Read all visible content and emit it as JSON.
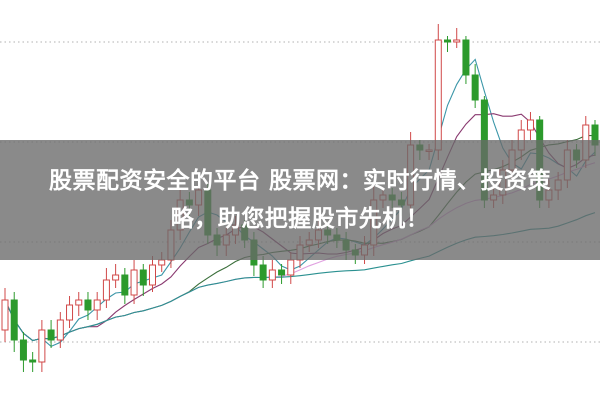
{
  "banner": {
    "line1": "股票配资安全的平台 股票网：实时行情、投资策",
    "line2": "略，助您把握股市先机！"
  },
  "chart_data": {
    "type": "candlestick",
    "title": "",
    "xlabel": "",
    "ylabel": "",
    "grid": "horizontal dotted",
    "ylim": [
      0,
      100
    ],
    "colors": {
      "up": "#d04848",
      "down": "#2c9a2c",
      "grid": "#b0b0b0",
      "ma5": "#3a96a8",
      "ma10": "#8a3a70",
      "ma20": "#3a6e3a",
      "ma30": "#e0a0e0",
      "ma60": "#2a9090"
    },
    "moving_averages": [
      5,
      10,
      20,
      30,
      60
    ],
    "open": [
      17.5,
      25,
      15,
      10,
      9.5,
      17.5,
      15,
      20,
      23.75,
      25,
      22.5,
      25,
      30,
      31.25,
      26.25,
      32.5,
      28.75,
      33.75,
      35,
      42.5,
      50,
      48.75,
      52.5,
      41.25,
      38.75,
      41.25,
      43.75,
      40,
      33.75,
      30,
      32.5,
      31.25,
      35,
      38.75,
      40,
      42.5,
      41.25,
      40,
      37.5,
      36.25,
      38.75,
      50,
      51.25,
      50,
      48.75,
      63.75,
      62.5,
      62.5,
      90,
      89.5,
      90,
      81.25,
      75,
      50,
      51.25,
      57.5,
      62.5,
      67.5,
      70,
      50,
      52.5,
      55,
      62.5,
      60,
      68.75
    ],
    "close": [
      25,
      15,
      10,
      9.5,
      17.5,
      15,
      20,
      23.75,
      25,
      22.5,
      25,
      30,
      31.25,
      26.25,
      32.5,
      28.75,
      33.75,
      35,
      42.5,
      50,
      48.75,
      52.5,
      41.25,
      38.75,
      41.25,
      43.75,
      40,
      33.75,
      30,
      32.5,
      31.25,
      35,
      38.75,
      40,
      42.5,
      41.25,
      40,
      37.5,
      36.25,
      38.75,
      50,
      51.25,
      50,
      48.75,
      63.75,
      62.5,
      62.5,
      90,
      89.5,
      90,
      81.25,
      75,
      50,
      51.25,
      57.5,
      62.5,
      67.5,
      70,
      50,
      52.5,
      55,
      62.5,
      60,
      68.75,
      63.75
    ],
    "high": [
      28,
      27,
      17,
      12,
      20,
      20,
      22,
      26,
      27,
      27,
      27,
      33,
      34,
      33,
      35,
      34,
      36,
      37,
      45,
      53,
      52,
      55,
      54,
      43,
      43,
      46,
      45,
      42,
      36,
      35,
      34,
      37,
      41,
      42,
      45,
      44,
      43,
      42,
      39,
      41,
      54,
      53,
      53,
      52,
      67,
      65,
      64,
      94,
      91,
      93,
      91,
      84,
      76,
      53,
      60,
      65,
      70,
      72,
      71,
      55,
      57,
      65,
      64,
      71,
      70
    ],
    "low": [
      14.5,
      12,
      7,
      7,
      7,
      13,
      13,
      18,
      21,
      20,
      20,
      23,
      28,
      24,
      24,
      26,
      27,
      32,
      33,
      40,
      46,
      46,
      39,
      36,
      36,
      39,
      38,
      31,
      28,
      28,
      29,
      29,
      33,
      37,
      38,
      39,
      38,
      35,
      34,
      34,
      36,
      48,
      48,
      46,
      46,
      60,
      60,
      60,
      87,
      88,
      79,
      73,
      48,
      48,
      49,
      55,
      60,
      65,
      48,
      48,
      50,
      53,
      58,
      58,
      61
    ]
  }
}
